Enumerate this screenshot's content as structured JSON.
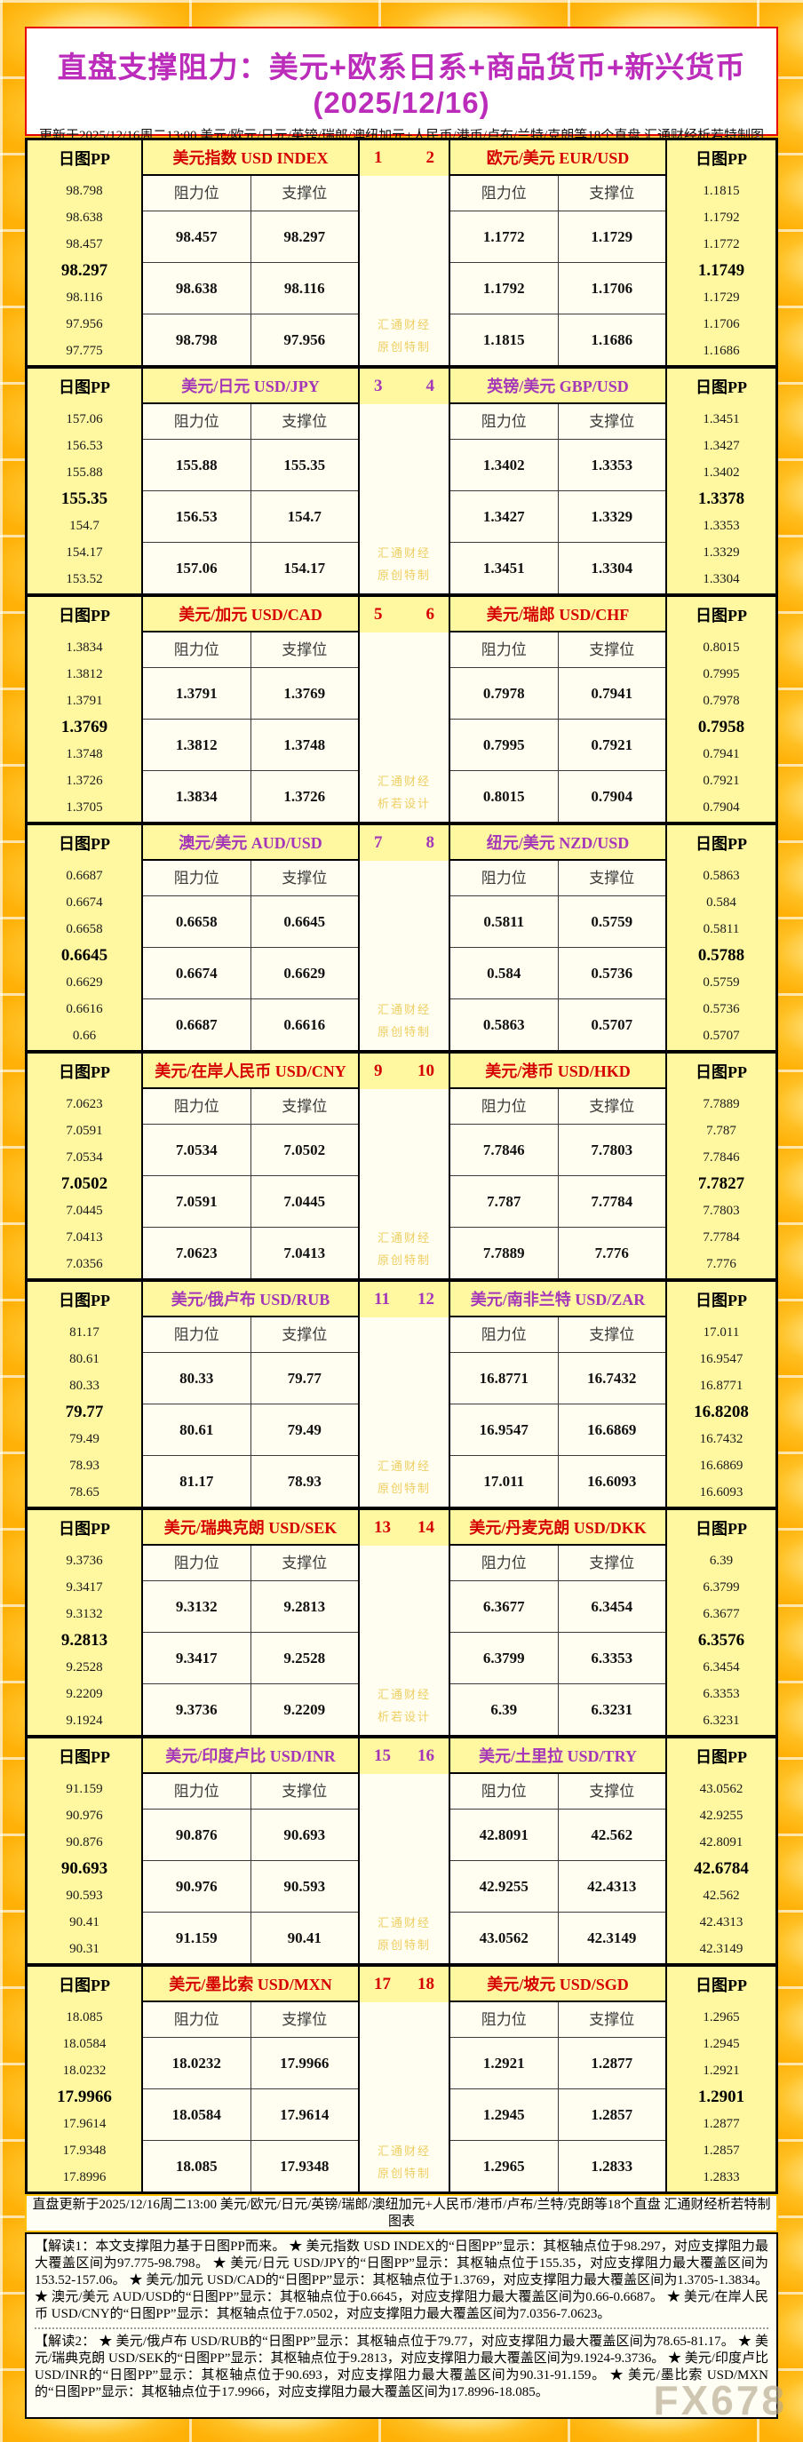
{
  "page": {
    "title": "直盘支撑阻力：美元+欧系日系+商品货币+新兴货币(2025/12/16)",
    "subtitle": "更新于2025/12/16周二13:00 美元/欧元/日元/英镑/瑞郎/澳纽加元+人民币/港币/卢布/兰特/克朗等18个直盘 汇通财经析若特制图表",
    "footer_note": "直盘更新于2025/12/16周二13:00 美元/欧元/日元/英镑/瑞郎/澳纽加元+人民币/港币/卢布/兰特/克朗等18个直盘 汇通财经析若特制图表",
    "corner_watermark": "FX678"
  },
  "labels": {
    "pp_header": "日图PP",
    "resistance": "阻力位",
    "support": "支撑位",
    "brand": "汇通财经"
  },
  "colors": {
    "red": "#D50000",
    "purple": "#A437B9",
    "title_purple": "#BB2CBB",
    "gold_watermark": "#EFCE62",
    "header_bg": "#FFF8A0",
    "cell_bg": "#FFFEF0"
  },
  "analysis": {
    "part1": "【解读1：本文支撑阻力基于日图PP而来。 ★ 美元指数 USD INDEX的“日图PP”显示：其枢轴点位于98.297，对应支撑阻力最大覆盖区间为97.775-98.798。 ★ 美元/日元 USD/JPY的“日图PP”显示：其枢轴点位于155.35，对应支撑阻力最大覆盖区间为153.52-157.06。 ★ 美元/加元 USD/CAD的“日图PP”显示：其枢轴点位于1.3769，对应支撑阻力最大覆盖区间为1.3705-1.3834。 ★ 澳元/美元 AUD/USD的“日图PP”显示：其枢轴点位于0.6645，对应支撑阻力最大覆盖区间为0.66-0.6687。 ★ 美元/在岸人民币 USD/CNY的“日图PP”显示：其枢轴点位于7.0502，对应支撑阻力最大覆盖区间为7.0356-7.0623。",
    "part2": "【解读2： ★ 美元/俄卢布 USD/RUB的“日图PP”显示：其枢轴点位于79.77，对应支撑阻力最大覆盖区间为78.65-81.17。 ★ 美元/瑞典克朗 USD/SEK的“日图PP”显示：其枢轴点位于9.2813，对应支撑阻力最大覆盖区间为9.1924-9.3736。 ★ 美元/印度卢比 USD/INR的“日图PP”显示：其枢轴点位于90.693，对应支撑阻力最大覆盖区间为90.31-91.159。 ★ 美元/墨比索 USD/MXN的“日图PP”显示：其枢轴点位于17.9966，对应支撑阻力最大覆盖区间为17.8996-18.085。"
  },
  "blocks": [
    {
      "nums": [
        "1",
        "2"
      ],
      "color": "red",
      "watermark": "原创特制",
      "left": {
        "name": "美元指数 USD INDEX",
        "pp": [
          "98.798",
          "98.638",
          "98.457",
          "98.297",
          "98.116",
          "97.956",
          "97.775"
        ],
        "rows": [
          [
            "98.457",
            "98.297"
          ],
          [
            "98.638",
            "98.116"
          ],
          [
            "98.798",
            "97.956"
          ]
        ]
      },
      "right": {
        "name": "欧元/美元 EUR/USD",
        "pp": [
          "1.1815",
          "1.1792",
          "1.1772",
          "1.1749",
          "1.1729",
          "1.1706",
          "1.1686"
        ],
        "rows": [
          [
            "1.1772",
            "1.1729"
          ],
          [
            "1.1792",
            "1.1706"
          ],
          [
            "1.1815",
            "1.1686"
          ]
        ]
      }
    },
    {
      "nums": [
        "3",
        "4"
      ],
      "color": "purple",
      "watermark": "原创特制",
      "left": {
        "name": "美元/日元 USD/JPY",
        "pp": [
          "157.06",
          "156.53",
          "155.88",
          "155.35",
          "154.7",
          "154.17",
          "153.52"
        ],
        "rows": [
          [
            "155.88",
            "155.35"
          ],
          [
            "156.53",
            "154.7"
          ],
          [
            "157.06",
            "154.17"
          ]
        ]
      },
      "right": {
        "name": "英镑/美元 GBP/USD",
        "pp": [
          "1.3451",
          "1.3427",
          "1.3402",
          "1.3378",
          "1.3353",
          "1.3329",
          "1.3304"
        ],
        "rows": [
          [
            "1.3402",
            "1.3353"
          ],
          [
            "1.3427",
            "1.3329"
          ],
          [
            "1.3451",
            "1.3304"
          ]
        ]
      }
    },
    {
      "nums": [
        "5",
        "6"
      ],
      "color": "red",
      "watermark": "析若设计",
      "left": {
        "name": "美元/加元 USD/CAD",
        "pp": [
          "1.3834",
          "1.3812",
          "1.3791",
          "1.3769",
          "1.3748",
          "1.3726",
          "1.3705"
        ],
        "rows": [
          [
            "1.3791",
            "1.3769"
          ],
          [
            "1.3812",
            "1.3748"
          ],
          [
            "1.3834",
            "1.3726"
          ]
        ]
      },
      "right": {
        "name": "美元/瑞郎 USD/CHF",
        "pp": [
          "0.8015",
          "0.7995",
          "0.7978",
          "0.7958",
          "0.7941",
          "0.7921",
          "0.7904"
        ],
        "rows": [
          [
            "0.7978",
            "0.7941"
          ],
          [
            "0.7995",
            "0.7921"
          ],
          [
            "0.8015",
            "0.7904"
          ]
        ]
      }
    },
    {
      "nums": [
        "7",
        "8"
      ],
      "color": "purple",
      "watermark": "原创特制",
      "left": {
        "name": "澳元/美元 AUD/USD",
        "pp": [
          "0.6687",
          "0.6674",
          "0.6658",
          "0.6645",
          "0.6629",
          "0.6616",
          "0.66"
        ],
        "rows": [
          [
            "0.6658",
            "0.6645"
          ],
          [
            "0.6674",
            "0.6629"
          ],
          [
            "0.6687",
            "0.6616"
          ]
        ]
      },
      "right": {
        "name": "纽元/美元 NZD/USD",
        "pp": [
          "0.5863",
          "0.584",
          "0.5811",
          "0.5788",
          "0.5759",
          "0.5736",
          "0.5707"
        ],
        "rows": [
          [
            "0.5811",
            "0.5759"
          ],
          [
            "0.584",
            "0.5736"
          ],
          [
            "0.5863",
            "0.5707"
          ]
        ]
      }
    },
    {
      "nums": [
        "9",
        "10"
      ],
      "color": "red",
      "watermark": "原创特制",
      "left": {
        "name": "美元/在岸人民币 USD/CNY",
        "pp": [
          "7.0623",
          "7.0591",
          "7.0534",
          "7.0502",
          "7.0445",
          "7.0413",
          "7.0356"
        ],
        "rows": [
          [
            "7.0534",
            "7.0502"
          ],
          [
            "7.0591",
            "7.0445"
          ],
          [
            "7.0623",
            "7.0413"
          ]
        ]
      },
      "right": {
        "name": "美元/港币 USD/HKD",
        "pp": [
          "7.7889",
          "7.787",
          "7.7846",
          "7.7827",
          "7.7803",
          "7.7784",
          "7.776"
        ],
        "rows": [
          [
            "7.7846",
            "7.7803"
          ],
          [
            "7.787",
            "7.7784"
          ],
          [
            "7.7889",
            "7.776"
          ]
        ]
      }
    },
    {
      "nums": [
        "11",
        "12"
      ],
      "color": "purple",
      "watermark": "原创特制",
      "left": {
        "name": "美元/俄卢布 USD/RUB",
        "pp": [
          "81.17",
          "80.61",
          "80.33",
          "79.77",
          "79.49",
          "78.93",
          "78.65"
        ],
        "rows": [
          [
            "80.33",
            "79.77"
          ],
          [
            "80.61",
            "79.49"
          ],
          [
            "81.17",
            "78.93"
          ]
        ]
      },
      "right": {
        "name": "美元/南非兰特 USD/ZAR",
        "pp": [
          "17.011",
          "16.9547",
          "16.8771",
          "16.8208",
          "16.7432",
          "16.6869",
          "16.6093"
        ],
        "rows": [
          [
            "16.8771",
            "16.7432"
          ],
          [
            "16.9547",
            "16.6869"
          ],
          [
            "17.011",
            "16.6093"
          ]
        ]
      }
    },
    {
      "nums": [
        "13",
        "14"
      ],
      "color": "red",
      "watermark": "析若设计",
      "left": {
        "name": "美元/瑞典克朗 USD/SEK",
        "pp": [
          "9.3736",
          "9.3417",
          "9.3132",
          "9.2813",
          "9.2528",
          "9.2209",
          "9.1924"
        ],
        "rows": [
          [
            "9.3132",
            "9.2813"
          ],
          [
            "9.3417",
            "9.2528"
          ],
          [
            "9.3736",
            "9.2209"
          ]
        ]
      },
      "right": {
        "name": "美元/丹麦克朗 USD/DKK",
        "pp": [
          "6.39",
          "6.3799",
          "6.3677",
          "6.3576",
          "6.3454",
          "6.3353",
          "6.3231"
        ],
        "rows": [
          [
            "6.3677",
            "6.3454"
          ],
          [
            "6.3799",
            "6.3353"
          ],
          [
            "6.39",
            "6.3231"
          ]
        ]
      }
    },
    {
      "nums": [
        "15",
        "16"
      ],
      "color": "purple",
      "watermark": "原创特制",
      "left": {
        "name": "美元/印度卢比 USD/INR",
        "pp": [
          "91.159",
          "90.976",
          "90.876",
          "90.693",
          "90.593",
          "90.41",
          "90.31"
        ],
        "rows": [
          [
            "90.876",
            "90.693"
          ],
          [
            "90.976",
            "90.593"
          ],
          [
            "91.159",
            "90.41"
          ]
        ]
      },
      "right": {
        "name": "美元/土里拉 USD/TRY",
        "pp": [
          "43.0562",
          "42.9255",
          "42.8091",
          "42.6784",
          "42.562",
          "42.4313",
          "42.3149"
        ],
        "rows": [
          [
            "42.8091",
            "42.562"
          ],
          [
            "42.9255",
            "42.4313"
          ],
          [
            "43.0562",
            "42.3149"
          ]
        ]
      }
    },
    {
      "nums": [
        "17",
        "18"
      ],
      "color": "red",
      "watermark": "原创特制",
      "left": {
        "name": "美元/墨比索 USD/MXN",
        "pp": [
          "18.085",
          "18.0584",
          "18.0232",
          "17.9966",
          "17.9614",
          "17.9348",
          "17.8996"
        ],
        "rows": [
          [
            "18.0232",
            "17.9966"
          ],
          [
            "18.0584",
            "17.9614"
          ],
          [
            "18.085",
            "17.9348"
          ]
        ]
      },
      "right": {
        "name": "美元/坡元 USD/SGD",
        "pp": [
          "1.2965",
          "1.2945",
          "1.2921",
          "1.2901",
          "1.2877",
          "1.2857",
          "1.2833"
        ],
        "rows": [
          [
            "1.2921",
            "1.2877"
          ],
          [
            "1.2945",
            "1.2857"
          ],
          [
            "1.2965",
            "1.2833"
          ]
        ]
      }
    }
  ]
}
